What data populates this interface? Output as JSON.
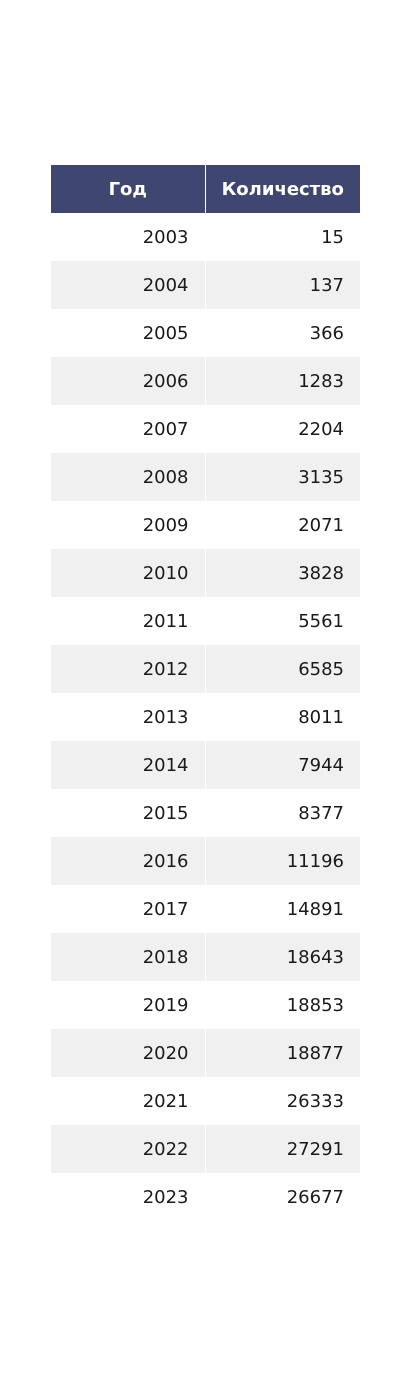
{
  "chart_data": {
    "type": "table",
    "columns": [
      "Год",
      "Количество"
    ],
    "rows": [
      [
        "2003",
        "15"
      ],
      [
        "2004",
        "137"
      ],
      [
        "2005",
        "366"
      ],
      [
        "2006",
        "1283"
      ],
      [
        "2007",
        "2204"
      ],
      [
        "2008",
        "3135"
      ],
      [
        "2009",
        "2071"
      ],
      [
        "2010",
        "3828"
      ],
      [
        "2011",
        "5561"
      ],
      [
        "2012",
        "6585"
      ],
      [
        "2013",
        "8011"
      ],
      [
        "2014",
        "7944"
      ],
      [
        "2015",
        "8377"
      ],
      [
        "2016",
        "11196"
      ],
      [
        "2017",
        "14891"
      ],
      [
        "2018",
        "18643"
      ],
      [
        "2019",
        "18853"
      ],
      [
        "2020",
        "18877"
      ],
      [
        "2021",
        "26333"
      ],
      [
        "2022",
        "27291"
      ],
      [
        "2023",
        "26677"
      ]
    ],
    "colors": {
      "header_bg": "#3f4670",
      "header_text": "#ffffff",
      "row_alt_bg": "#f0f0f0",
      "row_bg": "#ffffff"
    }
  }
}
